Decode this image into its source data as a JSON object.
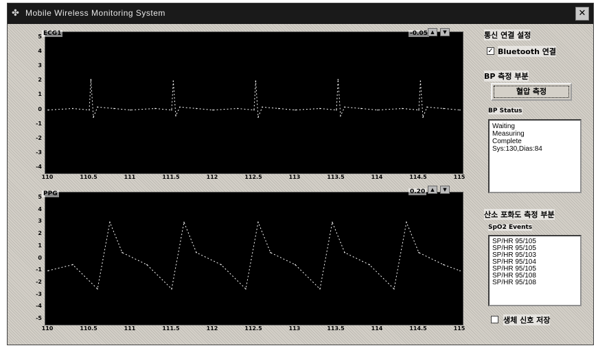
{
  "window": {
    "title": "Mobile Wireless Monitoring System",
    "close_glyph": "✕"
  },
  "ecg_panel": {
    "label": "ECG1",
    "value": "-0.05",
    "btn_a": "▲",
    "btn_b": "▼",
    "y_ticks": [
      "5",
      "4",
      "3",
      "2",
      "1",
      "0",
      "-1",
      "-2",
      "-3",
      "-4"
    ],
    "x_ticks": [
      "110",
      "110.5",
      "111",
      "111.5",
      "112",
      "112.5",
      "113",
      "113.5",
      "114",
      "114.5",
      "115"
    ]
  },
  "ppg_panel": {
    "label": "PPG",
    "value": "0.20",
    "btn_a": "▲",
    "btn_b": "▼",
    "y_ticks": [
      "5",
      "4",
      "3",
      "2",
      "1",
      "0",
      "-1",
      "-2",
      "-3",
      "-4",
      "-5"
    ],
    "x_ticks": [
      "110",
      "110.5",
      "111",
      "111.5",
      "112",
      "112.5",
      "113",
      "113.5",
      "114",
      "114.5",
      "115"
    ]
  },
  "chart_data": [
    {
      "type": "line",
      "title": "ECG1",
      "xlim": [
        110,
        115
      ],
      "ylim": [
        -4,
        5
      ],
      "series": [
        {
          "color": "#ffffff",
          "x": [
            110.0,
            110.3,
            110.5,
            110.52,
            110.55,
            110.6,
            110.8,
            111.0,
            111.3,
            111.5,
            111.52,
            111.55,
            111.6,
            111.8,
            112.0,
            112.3,
            112.5,
            112.52,
            112.55,
            112.6,
            112.8,
            113.0,
            113.3,
            113.5,
            113.52,
            113.55,
            113.6,
            113.8,
            114.0,
            114.3,
            114.5,
            114.52,
            114.55,
            114.6,
            114.8,
            115.0
          ],
          "y": [
            0,
            0.1,
            0,
            2.1,
            -0.5,
            0.2,
            0.1,
            0,
            0.1,
            0,
            2.0,
            -0.4,
            0.2,
            0.1,
            0,
            0.1,
            0,
            2.0,
            -0.5,
            0.2,
            0.1,
            0,
            0.1,
            0,
            2.1,
            -0.4,
            0.2,
            0.1,
            0,
            0.1,
            0,
            2.0,
            -0.5,
            0.2,
            0.1,
            0
          ]
        }
      ]
    },
    {
      "type": "line",
      "title": "PPG",
      "xlim": [
        110,
        115
      ],
      "ylim": [
        -5,
        5
      ],
      "series": [
        {
          "color": "#ffffff",
          "x": [
            110.0,
            110.3,
            110.6,
            110.75,
            110.9,
            111.2,
            111.5,
            111.65,
            111.8,
            112.1,
            112.4,
            112.55,
            112.7,
            113.0,
            113.3,
            113.45,
            113.6,
            113.9,
            114.2,
            114.35,
            114.5,
            114.8,
            115.0
          ],
          "y": [
            -1,
            -0.5,
            -2.5,
            3,
            0.5,
            -0.5,
            -2.5,
            3,
            0.5,
            -0.5,
            -2.5,
            3,
            0.5,
            -0.5,
            -2.5,
            3,
            0.5,
            -0.5,
            -2.5,
            3,
            0.5,
            -0.5,
            -1
          ]
        }
      ]
    }
  ],
  "sidebar": {
    "bluetooth_group": "통신 연결 설정",
    "bluetooth_check_label": "Bluetooth 연결",
    "bp_group": "BP 측정 부분",
    "measure_button": "혈압 측정",
    "bp_status_label": "BP Status",
    "bp_status_lines": [
      "Waiting",
      "Measuring",
      "Complete",
      "Sys:130,Dias:84"
    ],
    "spo2_group": "산소 포화도 측정 부분",
    "spo2_list_label": "SpO2 Events",
    "spo2_events": [
      "SP/HR 95/105",
      "SP/HR 95/105",
      "SP/HR 95/103",
      "SP/HR 95/104",
      "SP/HR 95/105",
      "SP/HR 95/108",
      "SP/HR 95/108"
    ],
    "bottom_check_label": "생체 신호 저장"
  }
}
